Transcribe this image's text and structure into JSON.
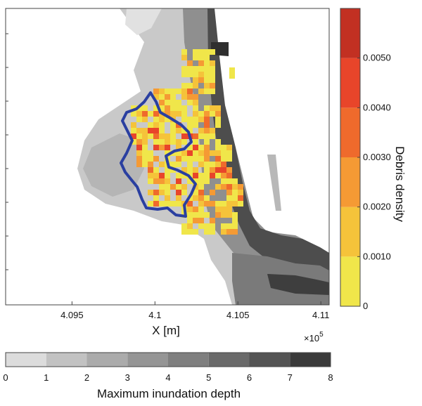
{
  "chart_data": {
    "type": "heatmap",
    "xlabel": "X [m]",
    "x_multiplier_label": "×10",
    "x_multiplier_exponent": "5",
    "x_tick_labels": [
      "4.095",
      "4.1",
      "4.105",
      "4.11"
    ],
    "x_tick_values": [
      409500,
      410000,
      410500,
      411000
    ],
    "xlim": [
      409100,
      411050
    ],
    "debris_colorbar": {
      "label": "Debris density",
      "range": [
        0,
        0.006
      ],
      "tick_labels": [
        "0",
        "0.0010",
        "0.0020",
        "0.0030",
        "0.0040",
        "0.0050"
      ],
      "tick_values": [
        0,
        0.001,
        0.002,
        0.003,
        0.004,
        0.005
      ],
      "colors": [
        "#f0e64a",
        "#f5c33a",
        "#f59a34",
        "#ef6a2c",
        "#e8452a",
        "#c23022"
      ]
    },
    "depth_colorbar": {
      "label": "Maximum inundation depth",
      "range": [
        0,
        8
      ],
      "tick_labels": [
        "0",
        "1",
        "2",
        "3",
        "4",
        "5",
        "6",
        "7",
        "8"
      ],
      "tick_values": [
        0,
        1,
        2,
        3,
        4,
        5,
        6,
        7,
        8
      ],
      "colors": [
        "#dcdcdc",
        "#c2c2c2",
        "#ababab",
        "#959595",
        "#7f7f7f",
        "#6a6a6a",
        "#545454",
        "#3a3a3a"
      ]
    },
    "outline_color": "#2a3fa0"
  }
}
